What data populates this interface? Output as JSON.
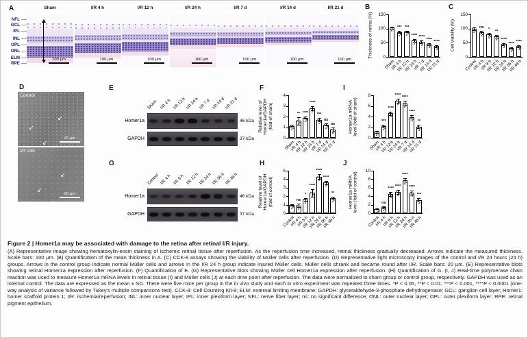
{
  "figure": {
    "panel_a": {
      "letter": "A",
      "layer_labels": [
        "NFL",
        "GCL",
        "IPL",
        "INL",
        "OPL",
        "ONL",
        "ELM",
        "RPE"
      ],
      "image_titles": [
        "Sham",
        "I/R 4 h",
        "I/R 12 h",
        "I/R 24 h",
        "I/R 7 d",
        "I/R 14 d",
        "I/R 21 d"
      ],
      "thickness_factors": [
        1.0,
        0.85,
        0.8,
        0.6,
        0.55,
        0.5,
        0.42
      ],
      "scale_bar": "100 μm"
    },
    "panel_d": {
      "letter": "D",
      "images": [
        {
          "label": "Control",
          "scale_bar": "20 μm"
        },
        {
          "label": "I/R 24h",
          "scale_bar": "20 μm"
        }
      ]
    },
    "blots": [
      {
        "panel": "E",
        "lanes": [
          "Sham",
          "I/R 4 h",
          "I/R 12 h",
          "I/R 24 h",
          "I/R 7 d",
          "I/R 14 d",
          "I/R 21 d"
        ],
        "rows": [
          {
            "label": "Homer1a",
            "kda": "46 kDa",
            "intensities": [
              0.5,
              0.62,
              0.92,
              1.0,
              0.6,
              0.5,
              0.45
            ]
          },
          {
            "label": "GAPDH",
            "kda": "37 kDa",
            "intensities": [
              0.95,
              0.95,
              0.95,
              0.9,
              0.95,
              0.9,
              0.85
            ]
          }
        ]
      },
      {
        "panel": "G",
        "lanes": [
          "Control",
          "I/R 4 h",
          "I/R 8 h",
          "I/R 12 h",
          "I/R 24 h",
          "I/R 36 h",
          "I/R 48 h"
        ],
        "rows": [
          {
            "label": "Homer1a",
            "kda": "46 kDa",
            "intensities": [
              0.3,
              0.4,
              0.5,
              0.7,
              1.0,
              0.8,
              0.55
            ]
          },
          {
            "label": "GAPDH",
            "kda": "37 kDa",
            "intensities": [
              0.95,
              0.9,
              0.95,
              0.85,
              0.95,
              0.9,
              0.85
            ]
          }
        ]
      }
    ],
    "icons": {
      "muller_cell_arrow": "↙"
    }
  },
  "chart_data": [
    {
      "panel": "B",
      "type": "bar",
      "categories": [
        "Sham",
        "I/R 4 h",
        "I/R 12 h",
        "I/R 24 h",
        "I/R 7 d",
        "I/R 14 d",
        "I/R 21 d"
      ],
      "values": [
        103,
        88,
        89,
        58,
        53,
        45,
        38
      ],
      "errors": [
        4,
        3,
        3,
        5,
        4,
        4,
        4
      ],
      "significance": [
        "",
        "***",
        "***",
        "****",
        "****",
        "****",
        "****"
      ],
      "ylabel": [
        "Thickness of retina (%)"
      ],
      "ylim": [
        0,
        150
      ],
      "yticks": [
        0,
        50,
        100,
        150
      ]
    },
    {
      "panel": "C",
      "type": "bar",
      "categories": [
        "Control",
        "I/R 4 h",
        "I/R 8 h",
        "I/R 12 h",
        "I/R 24 h",
        "I/R 36 h",
        "I/R 48 h"
      ],
      "values": [
        100,
        88,
        80,
        73,
        45,
        32,
        38
      ],
      "errors": [
        5,
        5,
        4,
        5,
        4,
        3,
        4
      ],
      "significance": [
        "",
        "ns",
        "*",
        "**",
        "****",
        "****",
        "****"
      ],
      "ylabel": [
        "Cell viability (%)"
      ],
      "ylim": [
        0,
        150
      ],
      "yticks": [
        0,
        50,
        100,
        150
      ]
    },
    {
      "panel": "F",
      "type": "bar",
      "categories": [
        "Sham",
        "I/R 4 h",
        "I/R 12 h",
        "I/R 24 h",
        "I/R 7 d",
        "I/R 14 d",
        "I/R 21 d"
      ],
      "values": [
        1.1,
        1.6,
        1.9,
        2.75,
        1.7,
        1.25,
        0.8
      ],
      "errors": [
        0.1,
        0.35,
        0.12,
        0.2,
        0.15,
        0.12,
        0.2
      ],
      "significance": [
        "",
        "**",
        "****",
        "****",
        "***",
        "ns",
        "ns"
      ],
      "ylabel": [
        "Relative level of",
        "Homer1a/GAPDH",
        "(fold of sham)"
      ],
      "ylim": [
        0,
        4
      ],
      "yticks": [
        0,
        1,
        2,
        3,
        4
      ]
    },
    {
      "panel": "I",
      "type": "bar",
      "categories": [
        "Sham",
        "I/R 4 h",
        "I/R 12 h",
        "I/R 24 h",
        "I/R 7 d",
        "I/R 14 d",
        "I/R 21 d"
      ],
      "values": [
        1.1,
        2.2,
        4.6,
        7.0,
        6.5,
        3.9,
        2.1
      ],
      "errors": [
        0.15,
        0.25,
        0.35,
        0.4,
        0.45,
        0.3,
        0.35
      ],
      "significance": [
        "",
        "***",
        "****",
        "****",
        "****",
        "****",
        "**"
      ],
      "ylabel": [
        "Homer1a mRNA",
        "level (fold of sham)"
      ],
      "ylim": [
        0,
        8
      ],
      "yticks": [
        0,
        2,
        4,
        6,
        8
      ]
    },
    {
      "panel": "H",
      "type": "bar",
      "categories": [
        "Control",
        "I/R 4 h",
        "I/R 8 h",
        "I/R 12 h",
        "I/R 24 h",
        "I/R 36 h",
        "I/R 48 h"
      ],
      "values": [
        0.95,
        0.9,
        1.6,
        2.4,
        4.3,
        3.6,
        1.75
      ],
      "errors": [
        0.08,
        0.2,
        0.15,
        0.45,
        0.3,
        0.2,
        0.15
      ],
      "significance": [
        "",
        "ns",
        "*",
        "****",
        "****",
        "****",
        "**"
      ],
      "ylabel": [
        "Relative level of",
        "Homer1a/GAPDH",
        "(fold of control)"
      ],
      "ylim": [
        0,
        5
      ],
      "yticks": [
        0,
        1,
        2,
        3,
        4,
        5
      ]
    },
    {
      "panel": "J",
      "type": "bar",
      "categories": [
        "Control",
        "I/R 4 h",
        "I/R 8 h",
        "I/R 12 h",
        "I/R 24 h",
        "I/R 36 h",
        "I/R 48 h"
      ],
      "values": [
        1.0,
        1.4,
        4.5,
        5.0,
        7.8,
        4.9,
        3.1
      ],
      "errors": [
        0.1,
        0.2,
        0.5,
        0.55,
        0.45,
        0.5,
        0.4
      ],
      "significance": [
        "",
        "ns",
        "****",
        "****",
        "****",
        "****",
        "***"
      ],
      "ylabel": [
        "Homer1a mRNA",
        "level (fold of control)"
      ],
      "ylim": [
        0,
        10
      ],
      "yticks": [
        0,
        2,
        4,
        6,
        8,
        10
      ]
    }
  ],
  "caption": {
    "title": "Figure 2  |  Homer1a may be associated with damage to the retina after retinal I/R injury.",
    "body": "(A) Representative image showing hematoxylin-eosin staining of ischemic retinal tissue after reperfusion. As the reperfusion time increased, retinal thickness gradually decreased. Arrows indicate the measured thickness. Scale bars: 100 μm. (B) Quantification of the mean thickness in A. (C) CCK-8 assays showing the viability of Müller cells after reperfusion. (D) Representative light microscopy images of the control and I/R 24 hours (24 h) groups. Arrows in the control group indicate normal Müller cells and arrows in the I/R 24 h group indicate injured Müller cells. Müller cells shrank and became round after I/R. Scale bars: 20 μm. (E) Representative blots showing retinal Homer1a expression after reperfusion. (F) Quantification of E. (G) Representative blots showing Müller cell Homer1a expression after reperfusion. (H) Quantification of G. (I, J) Real-time polymerase chain reaction was used to measure Homer1a mRNA levels in retinal tissue (I) and Müller cells (J) at each time point after reperfusion. The data were normalized to sham group or control group, respectively. GAPDH was used as an internal control. The data are expressed as the mean ± SD. There were five mice per group in the in vivo study and each in vitro experiment was repeated three times. *P < 0.05, **P < 0.01, ***P < 0.001, ****P < 0.0001 (one-way analysis of variance followed by Tukey's multiple comparisons test). CCK-8: Cell Counting Kit-8; ELM: external limiting membrane; GAPDH: glyceraldehyde-3-phosphate dehydrogenase; GCL: ganglion cell layer; Homer1: homer scaffold protein 1; I/R: ischemia/reperfusion; INL: inner nuclear layer; IPL: inner plexiform layer; NFL: nerve fiber layer; ns: no significant difference; ONL: outer nuclear layer; OPL: outer plexiform layer; RPE: retinal pigment epithelium."
  }
}
